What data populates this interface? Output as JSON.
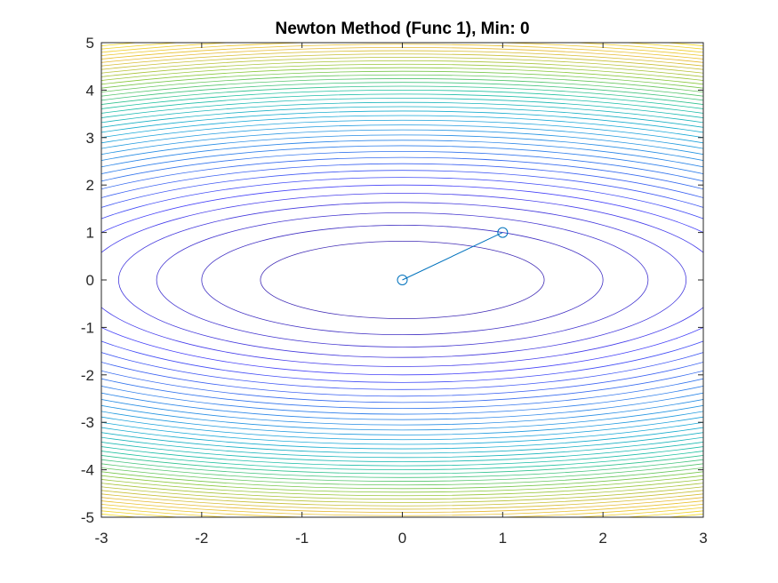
{
  "chart_data": {
    "type": "line",
    "title": "Newton Method (Func 1), Min: 0",
    "xlabel": "",
    "ylabel": "",
    "xlim": [
      -3,
      3
    ],
    "ylim": [
      -5,
      5
    ],
    "x_ticks": [
      -3,
      -2,
      -1,
      0,
      1,
      2,
      3
    ],
    "y_ticks": [
      5,
      4,
      3,
      2,
      1,
      0,
      -1,
      -2,
      -3,
      -4,
      -5
    ],
    "x_tick_labels": [
      "-3",
      "-2",
      "-1",
      "0",
      "1",
      "2",
      "3"
    ],
    "y_tick_labels": [
      "5",
      "4",
      "3",
      "2",
      "1",
      "0",
      "-1",
      "-2",
      "-3",
      "-4",
      "-5"
    ],
    "grid": false,
    "contour": {
      "function": "x^2 + 3*y^2",
      "level_step": 2,
      "level_max": 84,
      "colormap": [
        "#3e26a8",
        "#4743f8",
        "#2f7feb",
        "#17a8d7",
        "#1fc19f",
        "#8bc83d",
        "#e5b931",
        "#f9e11e"
      ]
    },
    "series": [
      {
        "x": [
          1,
          0
        ],
        "y": [
          1,
          0
        ],
        "color": "#0072bd",
        "marker": "circle"
      }
    ]
  }
}
